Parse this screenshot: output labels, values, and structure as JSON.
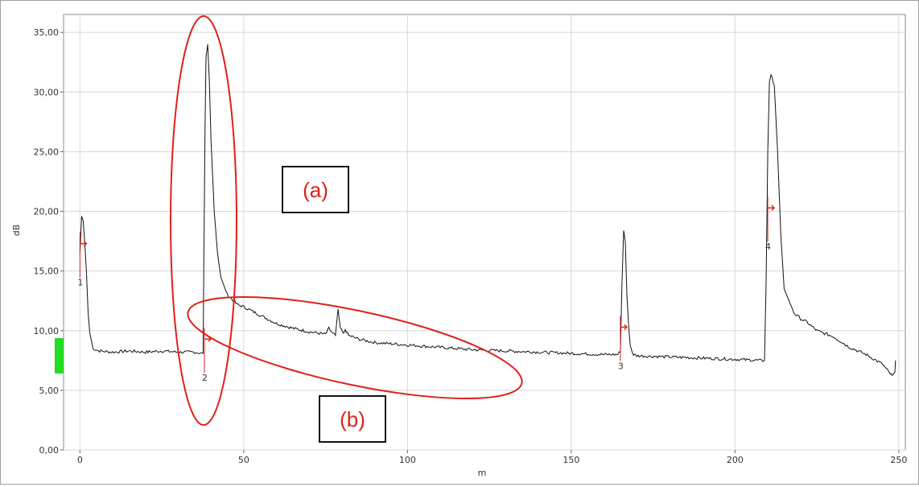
{
  "chart_data": {
    "type": "line",
    "xlabel": "m",
    "ylabel": "dB",
    "xlim": [
      -5,
      252
    ],
    "ylim": [
      0,
      36.5
    ],
    "x_ticks": [
      "0",
      "50",
      "100",
      "150",
      "200",
      "250"
    ],
    "x_tick_values": [
      0,
      50,
      100,
      150,
      200,
      250
    ],
    "y_ticks": [
      "0,00",
      "5,00",
      "10,00",
      "15,00",
      "20,00",
      "25,00",
      "30,00",
      "35,00"
    ],
    "y_tick_values": [
      0,
      5,
      10,
      15,
      20,
      25,
      30,
      35
    ],
    "grid": true,
    "series": [
      {
        "x": [
          0,
          0.5,
          1,
          1.5,
          2,
          2.5,
          3,
          4,
          6,
          10,
          15,
          20,
          25,
          30,
          35,
          37,
          37.6,
          37.8,
          38.2,
          38.5,
          39,
          39.5,
          40,
          41,
          42,
          43,
          45,
          48,
          50,
          55,
          60,
          65,
          70,
          75,
          76,
          77,
          78,
          78.8,
          79.5,
          80.5,
          81,
          82,
          83,
          85,
          90,
          100,
          110,
          120,
          130,
          140,
          150,
          160,
          164,
          165,
          165.5,
          166,
          166.5,
          167,
          167.5,
          168,
          168.5,
          169,
          170,
          180,
          190,
          200,
          208,
          209,
          209.5,
          210,
          210.5,
          211,
          212,
          213,
          214,
          215,
          218,
          220,
          222,
          225,
          230,
          235,
          240,
          245,
          247,
          248,
          248.8,
          249
        ],
        "y": [
          16.5,
          19.6,
          19.2,
          17.2,
          14.8,
          11.5,
          9.8,
          8.5,
          8.3,
          8.2,
          8.3,
          8.2,
          8.3,
          8.2,
          8.2,
          8.1,
          8.1,
          15,
          27,
          33,
          34,
          31,
          26,
          20,
          16.5,
          14.5,
          13,
          12.2,
          12,
          11.3,
          10.6,
          10.2,
          9.9,
          9.7,
          10.2,
          9.8,
          9.6,
          11.8,
          10.2,
          9.7,
          10.1,
          9.6,
          9.5,
          9.3,
          9.0,
          8.8,
          8.6,
          8.4,
          8.3,
          8.2,
          8.1,
          8.0,
          8.0,
          8.2,
          14,
          18.5,
          17.5,
          13,
          10.5,
          8.8,
          8.3,
          8.0,
          7.9,
          7.8,
          7.7,
          7.6,
          7.5,
          7.5,
          14,
          25,
          30.8,
          31.5,
          30.5,
          25,
          18,
          13.5,
          11.5,
          11,
          10.7,
          10,
          9.5,
          8.6,
          8,
          7.2,
          6.5,
          6.2,
          6.4,
          7.5
        ]
      }
    ],
    "event_markers": [
      {
        "label": "1",
        "x": 0,
        "y": 15
      },
      {
        "label": "2",
        "x": 38,
        "y": 7
      },
      {
        "label": "3",
        "x": 165,
        "y": 8
      },
      {
        "label": "4",
        "x": 210,
        "y": 18
      }
    ],
    "annotations": [
      {
        "text": "(a)",
        "region": "first reflection peak (marker 2)"
      },
      {
        "text": "(b)",
        "region": "decaying tail after peak 2"
      }
    ]
  },
  "colors": {
    "trace": "#111111",
    "annotation": "#e0201a",
    "marker": "#e0201a",
    "grid": "#d8d8d8",
    "launch_level": "#22dd22"
  }
}
